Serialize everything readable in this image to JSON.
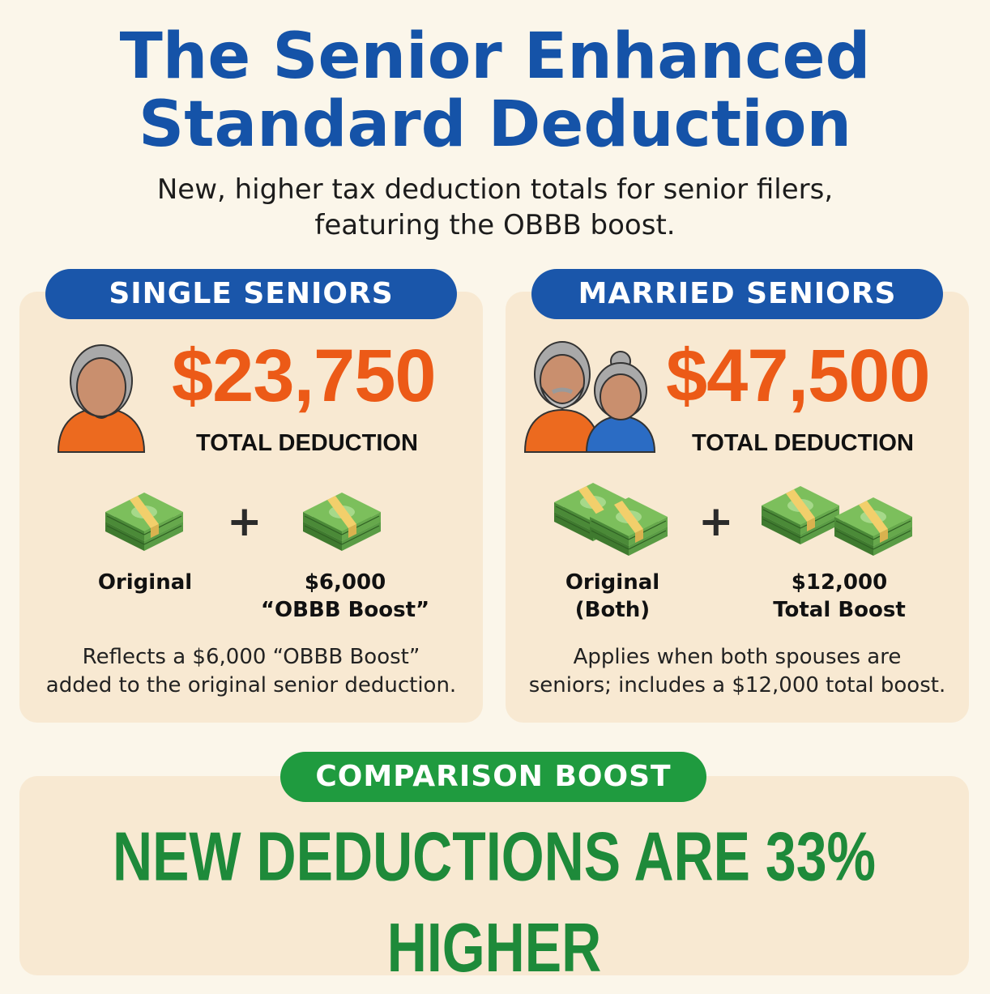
{
  "header": {
    "title_line1": "The Senior Enhanced",
    "title_line2": "Standard Deduction",
    "subtitle_line1": "New, higher tax deduction totals for senior filers,",
    "subtitle_line2": "featuring the OBBB boost."
  },
  "single": {
    "heading": "SINGLE SENIORS",
    "amount": "$23,750",
    "amount_label": "TOTAL DEDUCTION",
    "plus": "+",
    "left_label": "Original",
    "right_label_line1": "$6,000",
    "right_label_line2": "“OBBB Boost”",
    "desc_line1": "Reflects a $6,000 “OBBB Boost”",
    "desc_line2": "added to the original senior deduction.",
    "icons": [
      "senior-person-icon",
      "money-stack-icon",
      "money-stack-icon"
    ]
  },
  "married": {
    "heading": "MARRIED SENIORS",
    "amount": "$47,500",
    "amount_label": "TOTAL DEDUCTION",
    "plus": "+",
    "left_label_line1": "Original",
    "left_label_line2": "(Both)",
    "right_label_line1": "$12,000",
    "right_label_line2": "Total Boost",
    "desc_line1": "Applies when both spouses are",
    "desc_line2": "seniors; includes a $12,000 total boost.",
    "icons": [
      "senior-couple-icon",
      "double-money-stack-icon",
      "double-money-stack-icon"
    ]
  },
  "comparison": {
    "heading": "COMPARISON BOOST",
    "headline": "NEW DEDUCTIONS ARE 33% HIGHER"
  },
  "colors": {
    "title_blue": "#1553a8",
    "amount_orange": "#ec5a17",
    "headline_green": "#1e8a3a",
    "pill_green": "#1f9b3f",
    "card_bg": "#f8e9d2",
    "page_bg": "#fbf6ea"
  }
}
